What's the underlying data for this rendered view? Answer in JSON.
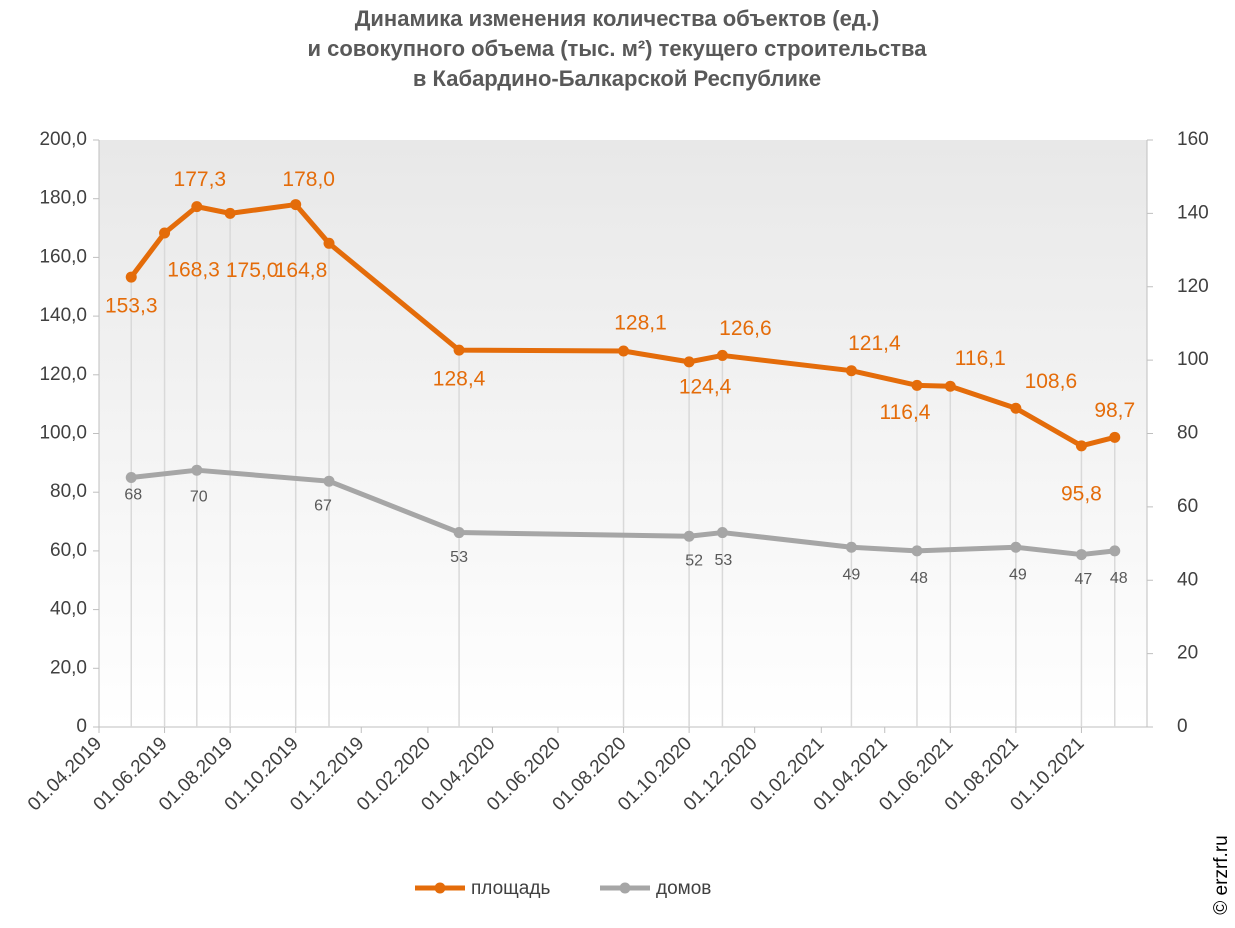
{
  "chart_data": {
    "type": "line",
    "title": [
      "Динамика изменения количества объектов (ед.)",
      "и совокупного объема (тыс. м²) текущего строительства",
      "в Кабардино-Балкарской Республике"
    ],
    "source": "© erzrf.ru",
    "xlim": [
      "01.04.2019",
      "01.12.2021"
    ],
    "xticks": [
      "01.04.2019",
      "01.06.2019",
      "01.08.2019",
      "01.10.2019",
      "01.12.2019",
      "01.02.2020",
      "01.04.2020",
      "01.06.2020",
      "01.08.2020",
      "01.10.2020",
      "01.12.2020",
      "01.02.2021",
      "01.04.2021",
      "01.06.2021",
      "01.08.2021",
      "01.10.2021"
    ],
    "ylim": [
      0,
      200
    ],
    "yticks": [
      0,
      {
        "value": 20,
        "label": "20,0"
      },
      {
        "value": 40,
        "label": "40,0"
      },
      {
        "value": 60,
        "label": "60,0"
      },
      {
        "value": 80,
        "label": "80,0"
      },
      {
        "value": 100,
        "label": "100,0"
      },
      {
        "value": 120,
        "label": "120,0"
      },
      {
        "value": 140,
        "label": "140,0"
      },
      {
        "value": 160,
        "label": "160,0"
      },
      {
        "value": 180,
        "label": "180,0"
      },
      {
        "value": 200,
        "label": "200,0"
      }
    ],
    "y2lim": [
      0,
      160
    ],
    "y2ticks": [
      0,
      20,
      40,
      60,
      80,
      100,
      120,
      140,
      160
    ],
    "legend": "bottom",
    "series": [
      {
        "name": "площадь",
        "color": "#e46c0a",
        "x": [
          "01.05.2019",
          "01.06.2019",
          "01.07.2019",
          "01.08.2019",
          "01.10.2019",
          "01.11.2019",
          "01.03.2020",
          "01.08.2020",
          "01.10.2020",
          "01.11.2020",
          "01.03.2021",
          "01.05.2021",
          "01.06.2021",
          "01.08.2021",
          "01.10.2021",
          "01.11.2021"
        ],
        "values": [
          153.3,
          168.3,
          177.3,
          175.0,
          178.0,
          164.8,
          128.4,
          128.1,
          124.4,
          126.6,
          121.4,
          116.4,
          116.1,
          108.6,
          95.8,
          98.7
        ],
        "value_labels": [
          "153,3",
          "168,3",
          "177,3",
          "175,0",
          "178,0",
          "164,8",
          "128,4",
          "128,1",
          "124,4",
          "126,6",
          "121,4",
          "116,4",
          "116,1",
          "108,6",
          "95,8",
          "98,7"
        ]
      },
      {
        "name": "домов",
        "color": "#a6a6a6",
        "axis": "y2",
        "x": [
          "01.05.2019",
          "01.07.2019",
          "01.11.2019",
          "01.03.2020",
          "01.10.2020",
          "01.11.2020",
          "01.03.2021",
          "01.05.2021",
          "01.08.2021",
          "01.10.2021",
          "01.11.2021"
        ],
        "values": [
          68,
          70,
          67,
          53,
          52,
          53,
          49,
          48,
          49,
          47,
          48
        ]
      }
    ]
  }
}
